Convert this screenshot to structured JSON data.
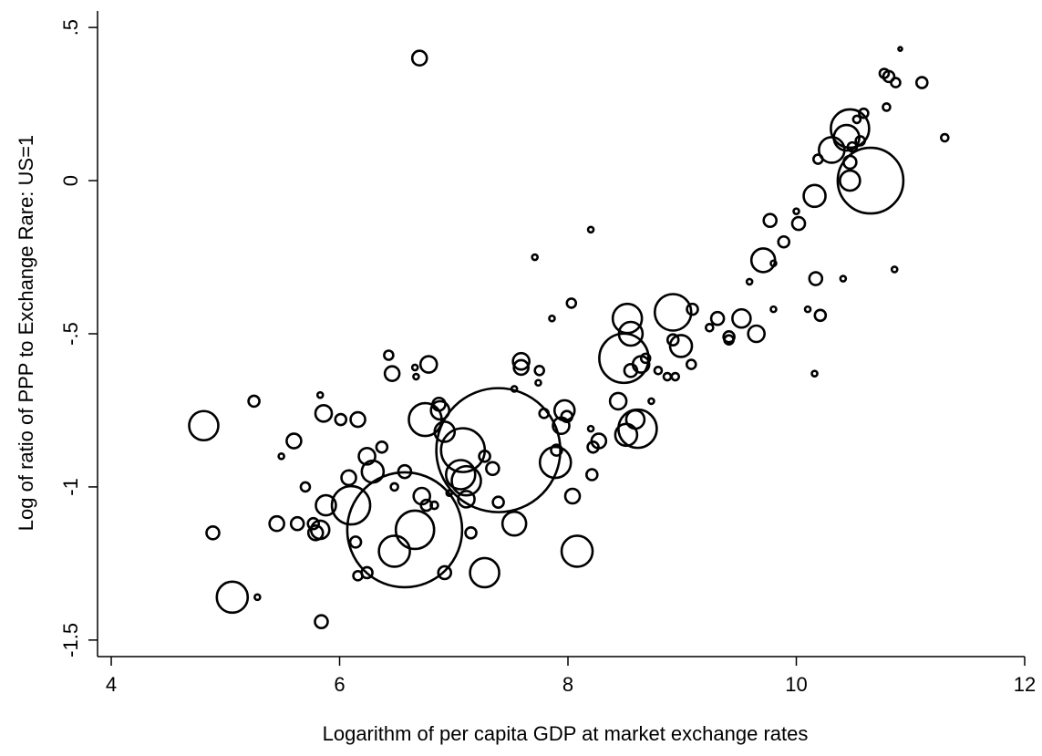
{
  "chart_data": {
    "type": "scatter",
    "x_label": "Logarithm of per capita GDP at market exchange rates",
    "y_label": "Log of ratio of PPP to Exchange Rare: US=1",
    "xlim": [
      3.88,
      12.0
    ],
    "ylim": [
      -1.554,
      0.554
    ],
    "xticks": [
      4,
      6,
      8,
      10,
      12
    ],
    "yticks": [
      {
        "value": 0.5,
        "label": ".5"
      },
      0,
      {
        "value": -0.5,
        "label": "-.5"
      },
      -1,
      {
        "value": -1.5,
        "label": "-1.5"
      }
    ],
    "color": "#000000",
    "x": [
      4.81,
      4.89,
      5.06,
      5.25,
      5.28,
      5.45,
      5.49,
      5.6,
      5.63,
      5.7,
      5.77,
      5.79,
      5.83,
      5.83,
      5.84,
      5.86,
      5.88,
      6.01,
      6.08,
      6.1,
      6.16,
      6.14,
      6.16,
      6.24,
      6.24,
      6.29,
      6.37,
      6.43,
      6.46,
      6.48,
      6.48,
      6.57,
      6.57,
      6.66,
      6.67,
      6.66,
      6.7,
      6.72,
      6.75,
      6.76,
      6.78,
      6.83,
      6.87,
      6.88,
      6.92,
      6.92,
      6.96,
      7.06,
      7.08,
      7.11,
      7.11,
      7.15,
      7.27,
      7.27,
      7.34,
      7.39,
      7.39,
      7.53,
      7.53,
      7.59,
      7.59,
      7.71,
      7.75,
      7.74,
      7.79,
      7.89,
      7.9,
      7.94,
      7.97,
      7.99,
      8.04,
      8.03,
      8.08,
      7.86,
      8.21,
      8.22,
      8.2,
      8.27,
      8.2,
      8.44,
      8.51,
      8.49,
      8.52,
      8.55,
      8.55,
      8.61,
      8.59,
      8.64,
      8.68,
      8.73,
      8.79,
      8.87,
      8.92,
      8.92,
      8.94,
      8.99,
      9.08,
      9.09,
      9.24,
      9.31,
      9.41,
      9.41,
      9.52,
      9.59,
      9.65,
      9.71,
      9.77,
      9.8,
      9.8,
      9.89,
      10.0,
      10.02,
      10.1,
      10.16,
      10.17,
      10.19,
      10.16,
      10.21,
      10.31,
      10.41,
      10.44,
      10.47,
      10.47,
      10.47,
      10.49,
      10.53,
      10.56,
      10.59,
      10.65,
      10.77,
      10.81,
      10.79,
      10.87,
      10.86,
      10.91,
      11.1,
      11.3
    ],
    "y": [
      -0.8,
      -1.15,
      -1.36,
      -0.72,
      -1.36,
      -1.12,
      -0.9,
      -0.85,
      -1.12,
      -1.0,
      -1.12,
      -1.15,
      -1.14,
      -0.7,
      -1.44,
      -0.76,
      -1.06,
      -0.78,
      -0.97,
      -1.06,
      -0.78,
      -1.18,
      -1.29,
      -1.28,
      -0.9,
      -0.95,
      -0.87,
      -0.57,
      -0.63,
      -1.21,
      -1.0,
      -0.95,
      -1.14,
      -0.61,
      -0.64,
      -1.14,
      0.4,
      -1.03,
      -0.78,
      -1.06,
      -0.6,
      -1.06,
      -0.73,
      -0.75,
      -0.82,
      -1.28,
      -1.02,
      -0.96,
      -0.88,
      -0.98,
      -1.04,
      -1.15,
      -0.9,
      -1.28,
      -0.94,
      -1.05,
      -0.88,
      -1.12,
      -0.68,
      -0.59,
      -0.61,
      -0.25,
      -0.62,
      -0.66,
      -0.76,
      -0.92,
      -0.88,
      -0.8,
      -0.75,
      -0.77,
      -1.03,
      -0.4,
      -1.21,
      -0.45,
      -0.96,
      -0.87,
      -0.16,
      -0.85,
      -0.81,
      -0.72,
      -0.83,
      -0.58,
      -0.45,
      -0.5,
      -0.62,
      -0.81,
      -0.78,
      -0.6,
      -0.58,
      -0.72,
      -0.62,
      -0.64,
      -0.43,
      -0.52,
      -0.64,
      -0.54,
      -0.6,
      -0.42,
      -0.48,
      -0.45,
      -0.51,
      -0.52,
      -0.45,
      -0.33,
      -0.5,
      -0.26,
      -0.13,
      -0.27,
      -0.42,
      -0.2,
      -0.1,
      -0.14,
      -0.42,
      -0.05,
      -0.32,
      0.07,
      -0.63,
      -0.44,
      0.1,
      -0.32,
      0.14,
      0.06,
      0.17,
      0.0,
      0.11,
      0.2,
      0.13,
      0.22,
      0.0,
      0.35,
      0.34,
      0.24,
      0.32,
      -0.29,
      0.43,
      0.32,
      0.14
    ],
    "sizes": [
      16,
      7,
      17,
      6,
      3,
      8,
      3,
      8,
      7,
      5,
      6,
      8,
      10,
      3,
      7,
      9,
      11,
      6,
      8,
      21,
      8,
      6,
      5,
      6,
      9,
      12,
      6,
      5,
      8,
      17,
      4,
      7,
      63,
      3,
      3,
      21,
      8,
      9,
      18,
      6,
      9,
      4,
      7,
      10,
      11,
      7,
      3,
      16,
      24,
      16,
      9,
      6,
      6,
      16,
      7,
      6,
      68,
      13,
      3,
      9,
      8,
      3,
      5,
      3,
      5,
      17,
      6,
      9,
      11,
      6,
      8,
      5,
      17,
      3,
      6,
      6,
      3,
      8,
      3,
      9,
      12,
      27,
      16,
      13,
      7,
      21,
      10,
      9,
      5,
      3,
      4,
      4,
      20,
      6,
      4,
      12,
      5,
      6,
      4,
      7,
      6,
      5,
      10,
      3,
      9,
      13,
      7,
      3,
      3,
      6,
      3,
      7,
      3,
      12,
      7,
      5,
      3,
      6,
      14,
      3,
      14,
      7,
      21,
      11,
      5,
      4,
      5,
      5,
      36,
      5,
      6,
      4,
      5,
      3,
      2,
      6,
      4
    ]
  }
}
